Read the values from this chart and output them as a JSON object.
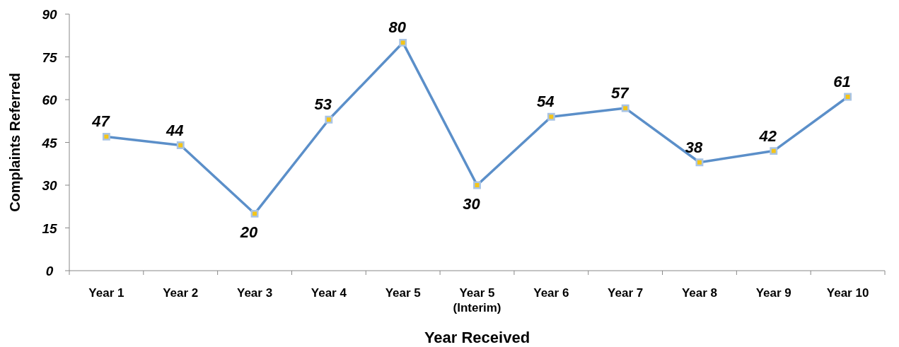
{
  "chart_data": {
    "type": "line",
    "xlabel": "Year Received",
    "ylabel": "Complaints Referred",
    "categories": [
      "Year 1",
      "Year 2",
      "Year 3",
      "Year 4",
      "Year 5",
      "Year 5 (Interim)",
      "Year 6",
      "Year 7",
      "Year 8",
      "Year 9",
      "Year 10"
    ],
    "series": [
      {
        "color": "#5b8fc9",
        "values": [
          47,
          44,
          20,
          53,
          80,
          30,
          54,
          57,
          38,
          42,
          61
        ]
      }
    ],
    "ylim": [
      0,
      90
    ],
    "yticks": [
      0,
      15,
      30,
      45,
      60,
      75,
      90
    ],
    "grid": false,
    "marker": "square",
    "line_style": "solid",
    "data_labels": true
  }
}
